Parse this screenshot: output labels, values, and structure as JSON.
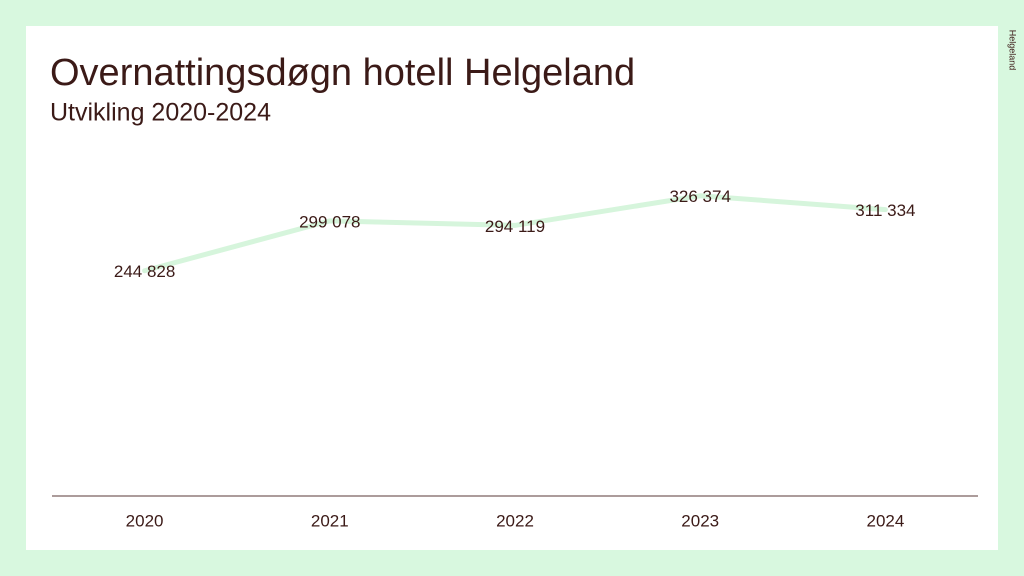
{
  "logo": "Helgeland",
  "chart_data": {
    "type": "line",
    "title": "Overnattingsdøgn hotell Helgeland",
    "subtitle": "Utvikling 2020-2024",
    "categories": [
      "2020",
      "2021",
      "2022",
      "2023",
      "2024"
    ],
    "values": [
      244828,
      299078,
      294119,
      326374,
      311334
    ],
    "value_labels": [
      "244 828",
      "299 078",
      "294 119",
      "326 374",
      "311 334"
    ],
    "color": "#d6f5dc",
    "ylim": [
      0,
      350000
    ]
  }
}
